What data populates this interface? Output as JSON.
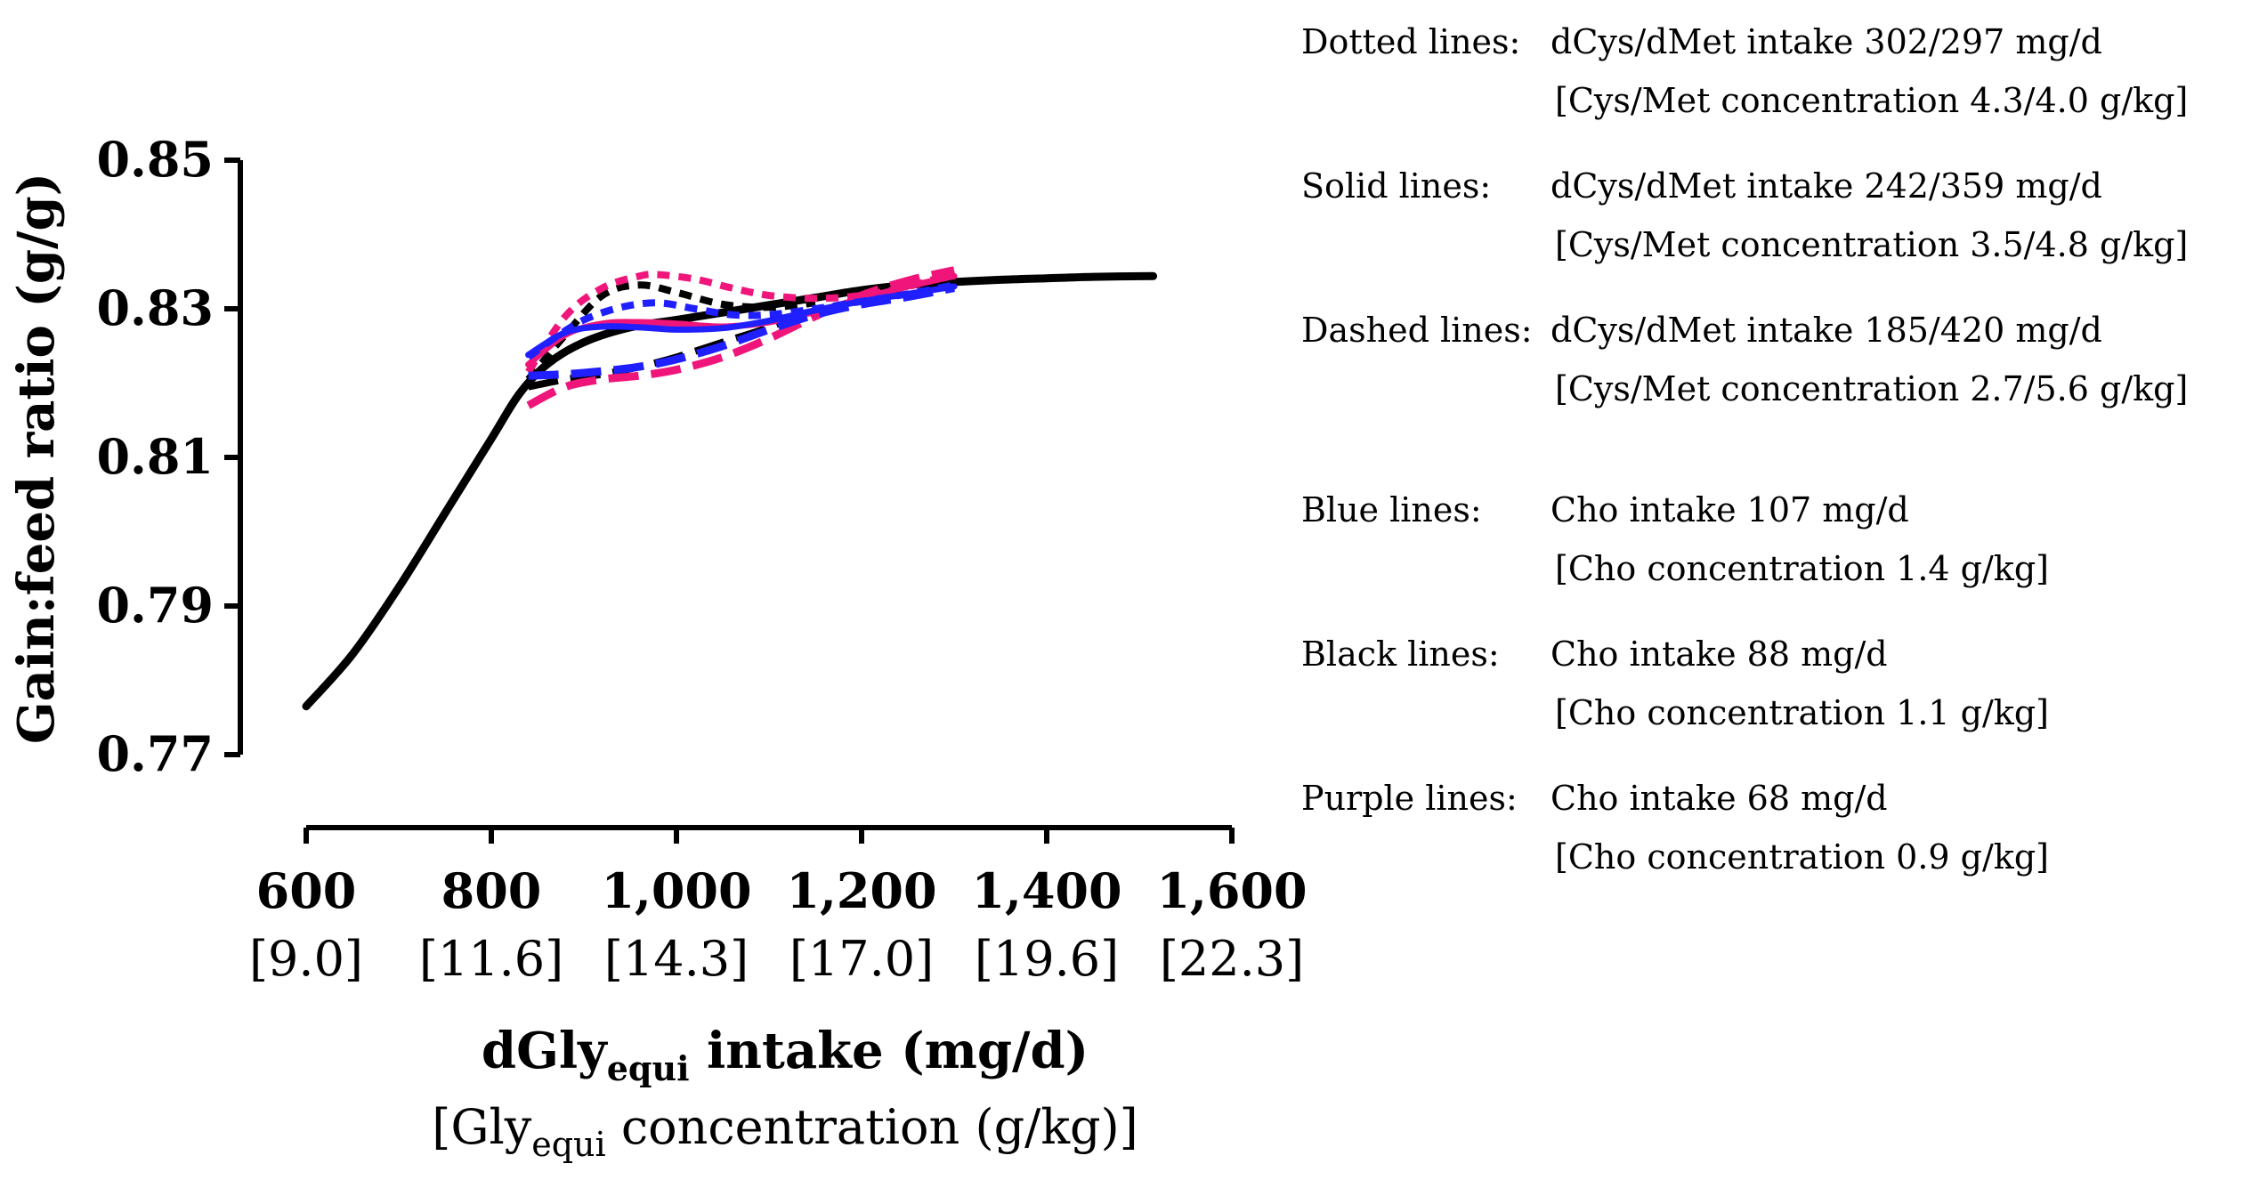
{
  "chart_data": {
    "type": "line",
    "ylabel": "Gain:feed ratio (g/g)",
    "xlabel_main": "dGly",
    "xlabel_main_sub": "equi",
    "xlabel_main_rest": " intake (mg/d)",
    "xlabel_second_open": "[Gly",
    "xlabel_second_sub": "equi",
    "xlabel_second_rest": " concentration (g/kg)]",
    "xlim": [
      600,
      1600
    ],
    "ylim": [
      0.77,
      0.85
    ],
    "x_ticks": [
      {
        "value": 600,
        "label": "600",
        "sublabel": "[9.0]"
      },
      {
        "value": 800,
        "label": "800",
        "sublabel": "[11.6]"
      },
      {
        "value": 1000,
        "label": "1,000",
        "sublabel": "[14.3]"
      },
      {
        "value": 1200,
        "label": "1,200",
        "sublabel": "[17.0]"
      },
      {
        "value": 1400,
        "label": "1,400",
        "sublabel": "[19.6]"
      },
      {
        "value": 1600,
        "label": "1,600",
        "sublabel": "[22.3]"
      }
    ],
    "y_ticks": [
      {
        "value": 0.77,
        "label": "0.77"
      },
      {
        "value": 0.79,
        "label": "0.79"
      },
      {
        "value": 0.81,
        "label": "0.81"
      },
      {
        "value": 0.83,
        "label": "0.83"
      },
      {
        "value": 0.85,
        "label": "0.85"
      }
    ],
    "colors": {
      "blue": "#1f1fff",
      "black": "#000000",
      "purple": "#f0157a"
    },
    "series": [
      {
        "color": "black",
        "style": "solid",
        "width": 9,
        "x": [
          600,
          650,
          700,
          750,
          800,
          830,
          860,
          900,
          950,
          1000,
          1050,
          1100,
          1150,
          1200,
          1250,
          1300,
          1350,
          1400,
          1450,
          1515
        ],
        "y": [
          0.7765,
          0.7835,
          0.7925,
          0.8025,
          0.8125,
          0.8185,
          0.8225,
          0.8255,
          0.8275,
          0.8285,
          0.8295,
          0.8305,
          0.8315,
          0.8325,
          0.8332,
          0.8336,
          0.8339,
          0.8341,
          0.8343,
          0.8344
        ]
      },
      {
        "color": "black",
        "style": "dotted",
        "width": 8,
        "x": [
          840,
          880,
          920,
          960,
          1000,
          1050,
          1100,
          1150
        ],
        "y": [
          0.8205,
          0.8265,
          0.8318,
          0.8332,
          0.8322,
          0.8306,
          0.8302,
          0.8308
        ]
      },
      {
        "color": "black",
        "style": "dashed",
        "width": 8,
        "x": [
          840,
          880,
          920,
          960,
          1000,
          1050,
          1100,
          1150
        ],
        "y": [
          0.8195,
          0.8205,
          0.8212,
          0.8222,
          0.8235,
          0.8255,
          0.8275,
          0.83
        ]
      },
      {
        "color": "purple",
        "style": "dotted",
        "width": 8,
        "x": [
          840,
          880,
          920,
          960,
          980,
          1020,
          1060,
          1100,
          1150,
          1200,
          1250,
          1300
        ],
        "y": [
          0.8215,
          0.829,
          0.8328,
          0.8344,
          0.8346,
          0.834,
          0.8328,
          0.8318,
          0.8314,
          0.8318,
          0.833,
          0.8348
        ]
      },
      {
        "color": "purple",
        "style": "solid",
        "width": 7,
        "x": [
          840,
          880,
          920,
          960,
          1000,
          1050,
          1100,
          1150,
          1200,
          1250,
          1300
        ],
        "y": [
          0.8225,
          0.8265,
          0.828,
          0.8282,
          0.828,
          0.8276,
          0.8282,
          0.8296,
          0.8314,
          0.833,
          0.8344
        ]
      },
      {
        "color": "purple",
        "style": "dashed",
        "width": 9,
        "x": [
          840,
          880,
          920,
          960,
          1000,
          1050,
          1100,
          1150,
          1200,
          1250,
          1300
        ],
        "y": [
          0.817,
          0.8195,
          0.8205,
          0.821,
          0.8218,
          0.8235,
          0.826,
          0.829,
          0.8318,
          0.8338,
          0.8352
        ]
      },
      {
        "color": "blue",
        "style": "dotted",
        "width": 8,
        "x": [
          840,
          870,
          900,
          940,
          980,
          1020,
          1060,
          1100,
          1150,
          1200,
          1250,
          1300
        ],
        "y": [
          0.8235,
          0.8262,
          0.8285,
          0.8302,
          0.8308,
          0.83,
          0.8292,
          0.8292,
          0.83,
          0.831,
          0.832,
          0.8332
        ]
      },
      {
        "color": "blue",
        "style": "solid",
        "width": 7,
        "x": [
          840,
          880,
          920,
          960,
          1000,
          1050,
          1100,
          1150,
          1200,
          1250,
          1300
        ],
        "y": [
          0.8238,
          0.8268,
          0.8276,
          0.8275,
          0.8272,
          0.8274,
          0.8284,
          0.8298,
          0.831,
          0.832,
          0.833
        ]
      },
      {
        "color": "blue",
        "style": "dashed",
        "width": 9,
        "x": [
          840,
          880,
          920,
          960,
          1000,
          1050,
          1100,
          1150,
          1200,
          1250,
          1300
        ],
        "y": [
          0.821,
          0.8212,
          0.8216,
          0.8222,
          0.8232,
          0.825,
          0.8272,
          0.8292,
          0.8306,
          0.8316,
          0.8328
        ]
      }
    ],
    "legend": [
      {
        "key": "Dotted lines:",
        "desc": "dCys/dMet intake 302/297 mg/d",
        "sub": "[Cys/Met concentration 4.3/4.0 g/kg]"
      },
      {
        "key": "Solid lines:",
        "desc": "dCys/dMet intake 242/359 mg/d",
        "sub": "[Cys/Met concentration 3.5/4.8 g/kg]"
      },
      {
        "key": "Dashed lines:",
        "desc": "dCys/dMet intake 185/420 mg/d",
        "sub": "[Cys/Met concentration 2.7/5.6 g/kg]"
      },
      {
        "key": "Blue lines:",
        "desc": "Cho intake 107 mg/d",
        "sub": "[Cho concentration 1.4 g/kg]"
      },
      {
        "key": "Black lines:",
        "desc": "Cho intake 88 mg/d",
        "sub": "[Cho concentration 1.1 g/kg]"
      },
      {
        "key": "Purple lines:",
        "desc": "Cho intake 68 mg/d",
        "sub": "[Cho concentration 0.9 g/kg]"
      }
    ]
  }
}
